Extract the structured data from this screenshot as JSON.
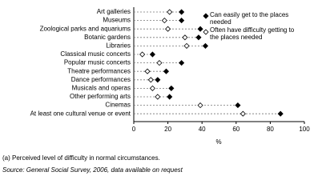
{
  "chart_data": {
    "type": "dot",
    "categories": [
      "Art galleries",
      "Museums",
      "Zoological parks and aquariums",
      "Botanic gardens",
      "Libraries",
      "Classical music concerts",
      "Popular music concerts",
      "Theatre performances",
      "Dance performances",
      "Musicals and operas",
      "Other performing arts",
      "Cinemas",
      "At least one cultural venue or event"
    ],
    "series": [
      {
        "name": "Can easily get to the places needed",
        "color": "#000000",
        "values": [
          28,
          28,
          39,
          38,
          42,
          11,
          28,
          19,
          14,
          22,
          21,
          61,
          86
        ]
      },
      {
        "name": "Often have difficulty getting to the places needed",
        "color": "#ffffff",
        "values": [
          21,
          18,
          20,
          30,
          31,
          5,
          15,
          8,
          10,
          11,
          14,
          39,
          64
        ]
      }
    ],
    "xlim": [
      0,
      100
    ],
    "xticks": [
      0,
      20,
      40,
      60,
      80,
      100
    ],
    "x_label": "%",
    "legend": "upper right",
    "footnote": "(a) Perceived level of difficulty in normal circumstances.",
    "source": "Source: General Social Survey, 2006, data available on request"
  }
}
